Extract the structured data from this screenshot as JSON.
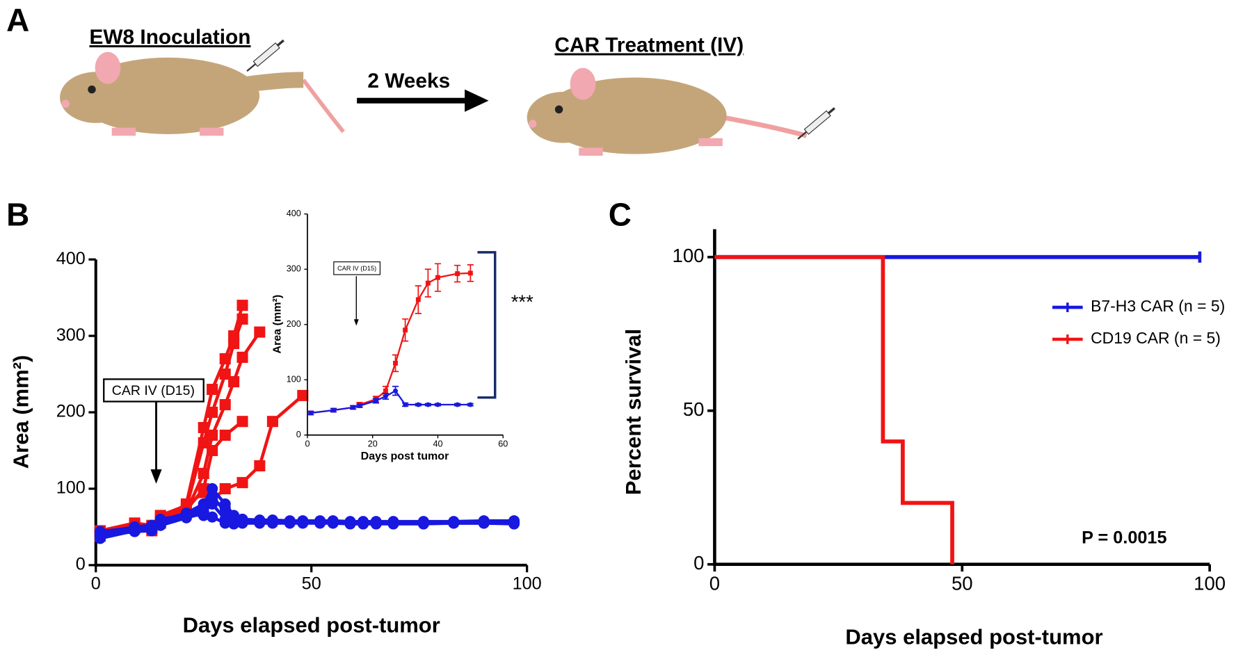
{
  "labels": [
    "A",
    "B",
    "C"
  ],
  "panel_a": {
    "step1": "EW8 Inoculation",
    "interval": "2 Weeks",
    "step2": "CAR Treatment (IV)"
  },
  "chart_data": [
    {
      "type": "line",
      "xlabel": "Days elapsed post-tumor",
      "ylabel": "Area (mm²)",
      "xlim": [
        0,
        100
      ],
      "xticks": [
        0,
        50,
        100
      ],
      "ylim": [
        0,
        400
      ],
      "yticks": [
        0,
        100,
        200,
        300,
        400
      ],
      "annotation": {
        "text": "CAR IV (D15)",
        "x": 14
      },
      "series": [
        {
          "name": "CD19 CAR",
          "color": "#f01414",
          "marker": "square",
          "x": [
            1,
            9,
            13,
            15,
            21,
            25,
            27,
            30,
            32,
            34
          ],
          "values": [
            42,
            55,
            52,
            58,
            80,
            180,
            230,
            270,
            300,
            340
          ]
        },
        {
          "name": "CD19 CAR",
          "color": "#f01414",
          "marker": "square",
          "x": [
            1,
            9,
            13,
            15,
            21,
            25,
            27,
            30,
            32,
            34
          ],
          "values": [
            40,
            50,
            48,
            60,
            75,
            160,
            200,
            250,
            290,
            322
          ]
        },
        {
          "name": "CD19 CAR",
          "color": "#f01414",
          "marker": "square",
          "x": [
            1,
            9,
            13,
            15,
            21,
            25,
            27,
            30,
            32,
            34,
            38
          ],
          "values": [
            38,
            48,
            45,
            55,
            70,
            120,
            170,
            210,
            240,
            272,
            305
          ]
        },
        {
          "name": "CD19 CAR",
          "color": "#f01414",
          "marker": "square",
          "x": [
            1,
            9,
            13,
            15,
            21,
            25,
            27,
            30,
            34
          ],
          "values": [
            44,
            52,
            50,
            62,
            72,
            100,
            150,
            170,
            188
          ]
        },
        {
          "name": "CD19 CAR",
          "color": "#f01414",
          "marker": "square",
          "x": [
            1,
            9,
            13,
            15,
            21,
            25,
            27,
            30,
            34,
            38,
            41,
            48
          ],
          "values": [
            45,
            55,
            50,
            65,
            78,
            95,
            85,
            100,
            108,
            130,
            188,
            222
          ]
        },
        {
          "name": "B7-H3 CAR",
          "color": "#1818e0",
          "marker": "circle",
          "x": [
            1,
            9,
            13,
            15,
            21,
            25,
            27,
            30,
            32,
            34,
            38,
            41,
            45,
            48,
            52,
            55,
            59,
            62,
            65,
            69,
            76,
            83,
            90,
            97
          ],
          "values": [
            40,
            47,
            48,
            58,
            68,
            80,
            100,
            80,
            65,
            60,
            58,
            58,
            57,
            57,
            57,
            57,
            56,
            56,
            56,
            55,
            55,
            56,
            56,
            56
          ]
        },
        {
          "name": "B7-H3 CAR",
          "color": "#1818e0",
          "marker": "circle",
          "x": [
            1,
            9,
            13,
            15,
            21,
            25,
            27,
            30,
            32,
            34,
            38,
            41,
            45,
            48,
            52,
            55,
            59,
            62,
            65,
            69,
            76,
            83,
            90,
            97
          ],
          "values": [
            35,
            45,
            50,
            55,
            65,
            75,
            90,
            70,
            60,
            58,
            57,
            57,
            57,
            57,
            56,
            56,
            56,
            56,
            55,
            55,
            55,
            55,
            55,
            55
          ]
        },
        {
          "name": "B7-H3 CAR",
          "color": "#1818e0",
          "marker": "circle",
          "x": [
            1,
            9,
            13,
            15,
            21,
            25,
            27,
            30,
            32,
            34,
            38,
            41,
            45,
            48,
            52,
            55,
            59,
            62,
            65,
            69,
            76,
            83,
            90,
            97
          ],
          "values": [
            42,
            50,
            52,
            60,
            66,
            65,
            63,
            55,
            54,
            55,
            55,
            55,
            55,
            55,
            55,
            55,
            54,
            54,
            54,
            54,
            54,
            55,
            55,
            54
          ]
        },
        {
          "name": "B7-H3 CAR",
          "color": "#1818e0",
          "marker": "circle",
          "x": [
            1,
            9,
            13,
            15,
            21,
            25,
            27,
            30,
            32,
            34,
            38,
            41,
            45,
            48,
            52,
            55,
            59,
            62,
            65,
            69,
            76,
            83,
            90,
            97
          ],
          "values": [
            38,
            44,
            45,
            52,
            62,
            68,
            85,
            75,
            62,
            60,
            59,
            59,
            58,
            58,
            58,
            58,
            57,
            57,
            57,
            57,
            57,
            57,
            58,
            58
          ]
        },
        {
          "name": "B7-H3 CAR",
          "color": "#1818e0",
          "marker": "circle",
          "x": [
            1,
            9,
            13,
            15,
            21,
            25,
            27,
            30,
            32,
            34,
            38,
            41,
            45,
            48,
            52,
            55,
            59,
            62,
            65,
            69,
            76,
            83,
            90,
            97
          ],
          "values": [
            44,
            49,
            50,
            57,
            64,
            70,
            80,
            60,
            55,
            56,
            56,
            56,
            56,
            56,
            56,
            56,
            55,
            55,
            55,
            55,
            55,
            56,
            56,
            56
          ]
        }
      ]
    },
    {
      "type": "line",
      "xlabel": "Days post tumor",
      "ylabel": "Area (mm²)",
      "xlim": [
        0,
        60
      ],
      "xticks": [
        0,
        20,
        40,
        60
      ],
      "ylim": [
        0,
        400
      ],
      "yticks": [
        0,
        100,
        200,
        300,
        400
      ],
      "annotation": {
        "text": "CAR IV (D15)",
        "x": 15
      },
      "significance": "***",
      "series": [
        {
          "name": "CD19 CAR",
          "color": "#f01414",
          "marker": "square",
          "x": [
            1,
            8,
            14,
            16,
            21,
            24,
            27,
            30,
            34,
            37,
            40,
            46,
            50
          ],
          "values": [
            40,
            45,
            50,
            55,
            65,
            80,
            130,
            190,
            245,
            275,
            285,
            292,
            293
          ],
          "errors": [
            3,
            3,
            3,
            4,
            5,
            8,
            15,
            20,
            25,
            25,
            25,
            15,
            15
          ]
        },
        {
          "name": "B7-H3 CAR",
          "color": "#1818e0",
          "marker": "circle",
          "x": [
            1,
            8,
            14,
            16,
            21,
            24,
            27,
            30,
            34,
            37,
            40,
            46,
            50
          ],
          "values": [
            40,
            45,
            50,
            53,
            62,
            70,
            80,
            55,
            55,
            55,
            55,
            55,
            55
          ],
          "errors": [
            3,
            3,
            3,
            3,
            4,
            5,
            8,
            3,
            2,
            2,
            2,
            2,
            2
          ]
        }
      ]
    },
    {
      "type": "step",
      "xlabel": "Days elapsed post-tumor",
      "ylabel": "Percent survival",
      "xlim": [
        0,
        100
      ],
      "xticks": [
        0,
        50,
        100
      ],
      "ylim": [
        0,
        100
      ],
      "yticks": [
        0,
        50,
        100
      ],
      "annotation": {
        "text": "P = 0.0015"
      },
      "series": [
        {
          "name": "B7-H3 CAR (n = 5)",
          "color": "#1818e0",
          "x": [
            0,
            98
          ],
          "values": [
            100,
            100
          ]
        },
        {
          "name": "CD19 CAR (n = 5)",
          "color": "#f01414",
          "x": [
            0,
            34,
            38,
            48
          ],
          "values": [
            100,
            40,
            20,
            0
          ]
        }
      ]
    }
  ]
}
